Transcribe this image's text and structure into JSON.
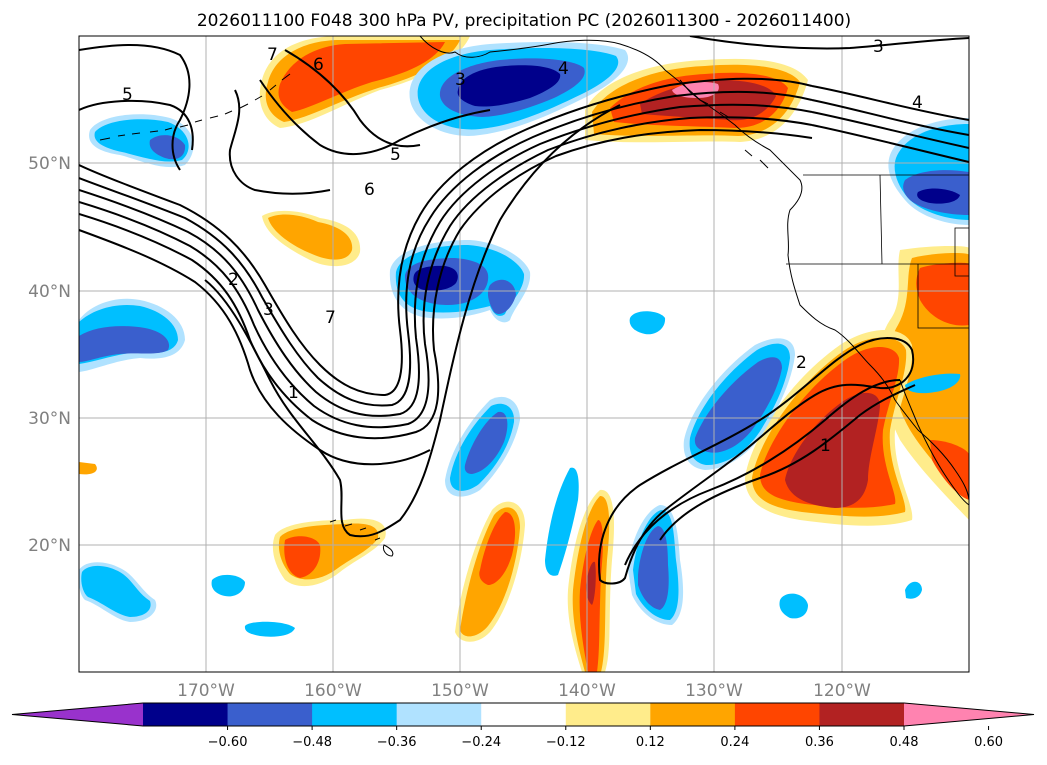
{
  "title": "2026011100 F048 300 hPa PV, precipitation PC (2026011300 - 2026011400)",
  "latitude_labels": [
    "50°N",
    "40°N",
    "30°N",
    "20°N"
  ],
  "longitude_labels": [
    "170°W",
    "160°W",
    "150°W",
    "140°W",
    "130°W",
    "120°W"
  ],
  "colorbar": {
    "tick_labels": [
      "−0.60",
      "−0.48",
      "−0.36",
      "−0.24",
      "−0.12",
      "0.12",
      "0.24",
      "0.36",
      "0.48",
      "0.60"
    ],
    "colors": [
      "#9932cc",
      "#00008b",
      "#3a5fcd",
      "#00bfff",
      "#b0e2ff",
      "#ffffff",
      "#ffec8b",
      "#ffa500",
      "#ff4500",
      "#b22222",
      "#ff83b0"
    ]
  },
  "contour_labels": [
    "7",
    "6",
    "5",
    "3",
    "4",
    "3",
    "4",
    "5",
    "6",
    "2",
    "3",
    "7",
    "1",
    "2",
    "1"
  ],
  "fill_colors": {
    "orange_light": "#ffec8b",
    "orange": "#ffa500",
    "red_orange": "#ff4500",
    "dark_red": "#b22222",
    "pink": "#ff83b0",
    "light_blue": "#b0e2ff",
    "sky_blue": "#00bfff",
    "blue": "#3a5fcd",
    "navy": "#00008b"
  }
}
